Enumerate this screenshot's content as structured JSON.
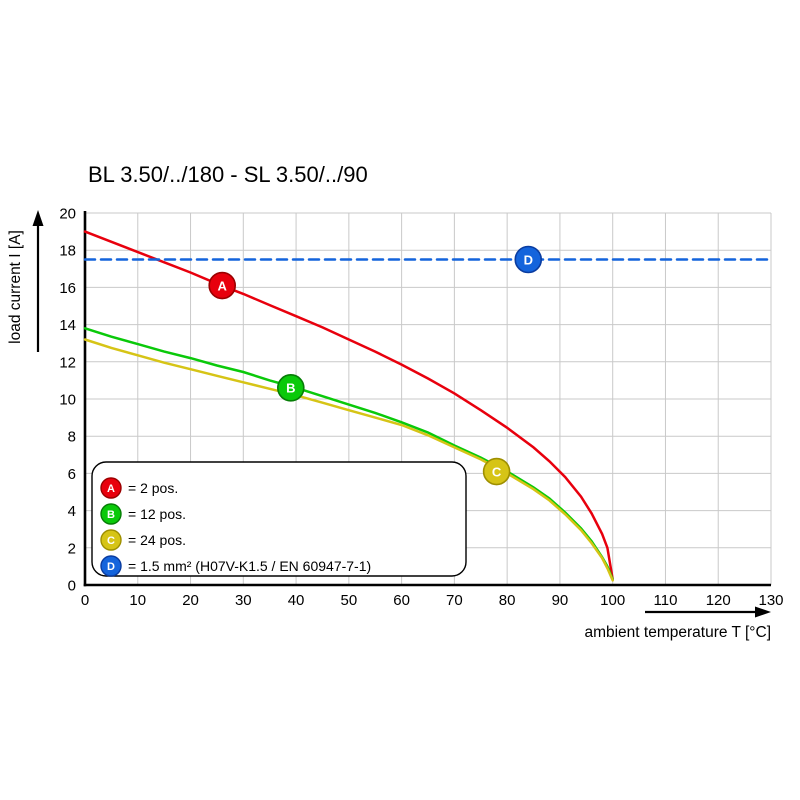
{
  "title": "BL 3.50/../180 - SL 3.50/../90",
  "chart_data": {
    "type": "line",
    "title": "BL 3.50/../180 - SL 3.50/../90",
    "xlabel": "ambient temperature T [°C]",
    "ylabel": "load current I [A]",
    "xlim": [
      0,
      130
    ],
    "ylim": [
      0,
      20
    ],
    "x_ticks": [
      0,
      10,
      20,
      30,
      40,
      50,
      60,
      70,
      80,
      90,
      100,
      110,
      120,
      130
    ],
    "y_ticks": [
      0,
      2,
      4,
      6,
      8,
      10,
      12,
      14,
      16,
      18,
      20
    ],
    "grid": true,
    "legend_position": "inside bottom-left",
    "series": [
      {
        "key": "A",
        "legend_label": "= 2 pos.",
        "color": "#e8000d",
        "edge_color": "#9b0000",
        "style": "solid",
        "marker": {
          "x": 26,
          "y": 16.1
        },
        "points": [
          [
            0,
            19.0
          ],
          [
            5,
            18.45
          ],
          [
            10,
            17.9
          ],
          [
            15,
            17.35
          ],
          [
            20,
            16.8
          ],
          [
            25,
            16.2
          ],
          [
            30,
            15.65
          ],
          [
            35,
            15.05
          ],
          [
            40,
            14.45
          ],
          [
            45,
            13.85
          ],
          [
            50,
            13.2
          ],
          [
            55,
            12.55
          ],
          [
            60,
            11.85
          ],
          [
            65,
            11.1
          ],
          [
            70,
            10.3
          ],
          [
            75,
            9.4
          ],
          [
            80,
            8.45
          ],
          [
            85,
            7.4
          ],
          [
            88,
            6.65
          ],
          [
            91,
            5.8
          ],
          [
            94,
            4.75
          ],
          [
            96,
            3.85
          ],
          [
            98,
            2.75
          ],
          [
            99,
            2.0
          ],
          [
            100,
            0.3
          ]
        ]
      },
      {
        "key": "B",
        "legend_label": "= 12 pos.",
        "color": "#0ac90a",
        "edge_color": "#067d06",
        "style": "solid",
        "marker": {
          "x": 39,
          "y": 10.6
        },
        "points": [
          [
            0,
            13.8
          ],
          [
            5,
            13.35
          ],
          [
            10,
            12.95
          ],
          [
            15,
            12.55
          ],
          [
            20,
            12.2
          ],
          [
            25,
            11.8
          ],
          [
            30,
            11.45
          ],
          [
            35,
            11.0
          ],
          [
            40,
            10.6
          ],
          [
            45,
            10.15
          ],
          [
            50,
            9.7
          ],
          [
            55,
            9.25
          ],
          [
            60,
            8.75
          ],
          [
            65,
            8.2
          ],
          [
            70,
            7.5
          ],
          [
            75,
            6.85
          ],
          [
            80,
            6.1
          ],
          [
            85,
            5.25
          ],
          [
            88,
            4.65
          ],
          [
            91,
            3.9
          ],
          [
            94,
            3.05
          ],
          [
            96,
            2.35
          ],
          [
            98,
            1.5
          ],
          [
            99,
            1.0
          ],
          [
            100,
            0.3
          ]
        ]
      },
      {
        "key": "C",
        "legend_label": "= 24 pos.",
        "color": "#d6c416",
        "edge_color": "#9e8f00",
        "style": "solid",
        "marker": {
          "x": 78,
          "y": 6.1
        },
        "points": [
          [
            0,
            13.2
          ],
          [
            5,
            12.75
          ],
          [
            10,
            12.35
          ],
          [
            15,
            11.95
          ],
          [
            20,
            11.6
          ],
          [
            25,
            11.25
          ],
          [
            30,
            10.9
          ],
          [
            35,
            10.55
          ],
          [
            40,
            10.2
          ],
          [
            45,
            9.8
          ],
          [
            50,
            9.4
          ],
          [
            55,
            9.0
          ],
          [
            60,
            8.6
          ],
          [
            65,
            8.05
          ],
          [
            70,
            7.4
          ],
          [
            75,
            6.75
          ],
          [
            80,
            6.0
          ],
          [
            85,
            5.15
          ],
          [
            88,
            4.55
          ],
          [
            91,
            3.8
          ],
          [
            94,
            2.95
          ],
          [
            96,
            2.25
          ],
          [
            98,
            1.45
          ],
          [
            99,
            0.9
          ],
          [
            100,
            0.25
          ]
        ]
      },
      {
        "key": "D",
        "legend_label": "= 1.5 mm² (H07V-K1.5 / EN 60947-7-1)",
        "color": "#1464dc",
        "edge_color": "#0a3ca0",
        "style": "dashed",
        "hline": 17.5,
        "marker": {
          "x": 84,
          "y": 17.5
        },
        "points": [
          [
            0,
            17.5
          ],
          [
            130,
            17.5
          ]
        ]
      }
    ]
  }
}
